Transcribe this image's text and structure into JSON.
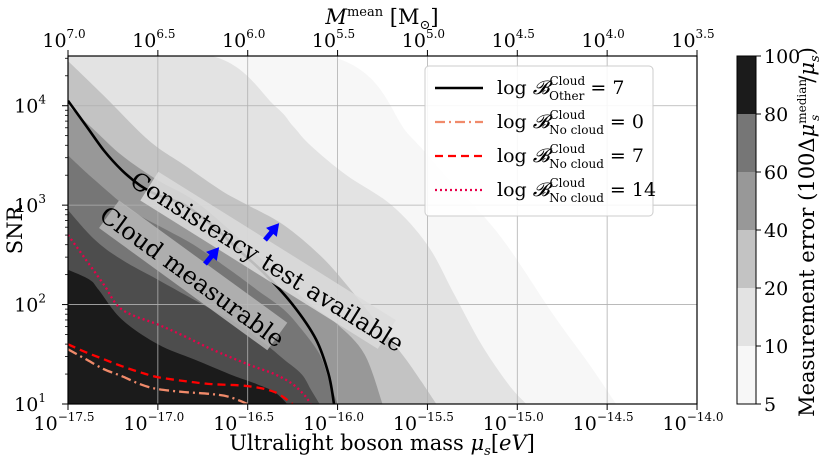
{
  "chart_data": {
    "type": "heatmap",
    "xlabel": "Ultralight boson mass μ_s[eV]",
    "ylabel": "SNR",
    "top_xlabel": "M^mean [M⊙]",
    "colorbar_label": "Measurement error (100Δμ_s^median/μ_s)",
    "x_scale": "log",
    "y_scale": "log",
    "xlim_log10": [
      -17.5,
      -14.0
    ],
    "ylim_log10": [
      1.0,
      4.5
    ],
    "x_ticks": [
      {
        "base": "10",
        "exp": "−17.5",
        "value": -17.5
      },
      {
        "base": "10",
        "exp": "−17.0",
        "value": -17.0
      },
      {
        "base": "10",
        "exp": "−16.5",
        "value": -16.5
      },
      {
        "base": "10",
        "exp": "−16.0",
        "value": -16.0
      },
      {
        "base": "10",
        "exp": "−15.5",
        "value": -15.5
      },
      {
        "base": "10",
        "exp": "−15.0",
        "value": -15.0
      },
      {
        "base": "10",
        "exp": "−14.5",
        "value": -14.5
      },
      {
        "base": "10",
        "exp": "−14.0",
        "value": -14.0
      }
    ],
    "top_ticks": [
      {
        "base": "10",
        "exp": "7.0",
        "value": 7.0
      },
      {
        "base": "10",
        "exp": "6.5",
        "value": 6.5
      },
      {
        "base": "10",
        "exp": "6.0",
        "value": 6.0
      },
      {
        "base": "10",
        "exp": "5.5",
        "value": 5.5
      },
      {
        "base": "10",
        "exp": "5.0",
        "value": 5.0
      },
      {
        "base": "10",
        "exp": "4.5",
        "value": 4.5
      },
      {
        "base": "10",
        "exp": "4.0",
        "value": 4.0
      },
      {
        "base": "10",
        "exp": "3.5",
        "value": 3.5
      }
    ],
    "y_ticks": [
      {
        "base": "10",
        "exp": "1",
        "value": 1
      },
      {
        "base": "10",
        "exp": "2",
        "value": 2
      },
      {
        "base": "10",
        "exp": "3",
        "value": 3
      },
      {
        "base": "10",
        "exp": "4",
        "value": 4
      }
    ],
    "colorbar": {
      "levels": [
        5,
        10,
        20,
        40,
        60,
        80,
        100
      ],
      "level_labels": [
        "5",
        "10",
        "20",
        "40",
        "60",
        "80",
        "100"
      ],
      "colors": [
        "#f7f7f7",
        "#e3e3e3",
        "#c3c3c3",
        "#989898",
        "#767676",
        "#4d4d4d",
        "#1b1b1b"
      ]
    },
    "filled_regions": [
      {
        "level": "5-10",
        "color": "#f7f7f7",
        "boundary": [
          [
            -17.5,
            4.5
          ],
          [
            -16.05,
            4.5
          ],
          [
            -15.6,
            3.7
          ],
          [
            -15.4,
            3.3
          ],
          [
            -15.1,
            2.7
          ],
          [
            -14.8,
            1.9
          ],
          [
            -14.6,
            1.4
          ],
          [
            -14.45,
            1.0
          ],
          [
            -17.5,
            1.0
          ]
        ]
      },
      {
        "level": "10-20",
        "color": "#e3e3e3",
        "boundary": [
          [
            -17.5,
            4.5
          ],
          [
            -16.7,
            4.5
          ],
          [
            -16.35,
            4.0
          ],
          [
            -16.25,
            3.8
          ],
          [
            -16.15,
            3.6
          ],
          [
            -15.95,
            3.3
          ],
          [
            -15.7,
            3.0
          ],
          [
            -15.5,
            2.6
          ],
          [
            -15.35,
            2.1
          ],
          [
            -15.2,
            1.6
          ],
          [
            -15.05,
            1.2
          ],
          [
            -14.95,
            1.0
          ],
          [
            -17.5,
            1.0
          ]
        ]
      },
      {
        "level": "20-40",
        "color": "#c3c3c3",
        "boundary": [
          [
            -17.5,
            4.45
          ],
          [
            -17.3,
            4.1
          ],
          [
            -17.05,
            3.65
          ],
          [
            -16.85,
            3.4
          ],
          [
            -16.65,
            3.15
          ],
          [
            -16.5,
            3.0
          ],
          [
            -16.3,
            2.8
          ],
          [
            -16.1,
            2.5
          ],
          [
            -15.95,
            2.2
          ],
          [
            -15.75,
            1.75
          ],
          [
            -15.6,
            1.4
          ],
          [
            -15.45,
            1.0
          ],
          [
            -17.5,
            1.0
          ]
        ]
      },
      {
        "level": "40-60",
        "color": "#989898",
        "boundary": [
          [
            -17.5,
            4.0
          ],
          [
            -17.35,
            3.75
          ],
          [
            -17.2,
            3.5
          ],
          [
            -17.0,
            3.25
          ],
          [
            -16.8,
            3.05
          ],
          [
            -16.6,
            2.75
          ],
          [
            -16.45,
            2.5
          ],
          [
            -16.3,
            2.25
          ],
          [
            -16.15,
            2.0
          ],
          [
            -16.0,
            1.8
          ],
          [
            -15.85,
            1.5
          ],
          [
            -15.75,
            1.0
          ],
          [
            -17.5,
            1.0
          ]
        ]
      },
      {
        "level": "60-80",
        "color": "#767676",
        "boundary": [
          [
            -17.5,
            3.5
          ],
          [
            -17.35,
            3.25
          ],
          [
            -17.15,
            2.95
          ],
          [
            -16.95,
            2.75
          ],
          [
            -16.8,
            2.6
          ],
          [
            -16.6,
            2.35
          ],
          [
            -16.45,
            2.15
          ],
          [
            -16.3,
            1.95
          ],
          [
            -16.2,
            1.75
          ],
          [
            -16.1,
            1.5
          ],
          [
            -16.05,
            1.25
          ],
          [
            -16.0,
            1.0
          ],
          [
            -17.5,
            1.0
          ]
        ]
      },
      {
        "level": "80-100",
        "color": "#4d4d4d",
        "boundary": [
          [
            -17.5,
            2.95
          ],
          [
            -17.35,
            2.65
          ],
          [
            -17.2,
            2.45
          ],
          [
            -17.0,
            2.25
          ],
          [
            -16.85,
            2.1
          ],
          [
            -16.7,
            1.95
          ],
          [
            -16.55,
            1.8
          ],
          [
            -16.4,
            1.6
          ],
          [
            -16.3,
            1.45
          ],
          [
            -16.2,
            1.3
          ],
          [
            -16.15,
            1.15
          ],
          [
            -16.1,
            1.0
          ],
          [
            -17.5,
            1.0
          ]
        ]
      },
      {
        "level": ">100",
        "color": "#1b1b1b",
        "boundary": [
          [
            -17.5,
            2.35
          ],
          [
            -17.38,
            2.25
          ],
          [
            -17.33,
            2.15
          ],
          [
            -17.2,
            1.85
          ],
          [
            -17.0,
            1.6
          ],
          [
            -16.8,
            1.45
          ],
          [
            -16.6,
            1.3
          ],
          [
            -16.45,
            1.2
          ],
          [
            -16.35,
            1.12
          ],
          [
            -16.28,
            1.0
          ],
          [
            -17.5,
            1.0
          ]
        ]
      }
    ],
    "series": [
      {
        "name": "log 𝓑^Cloud_Other = 7",
        "color": "#000000",
        "style": "solid",
        "x": [
          -17.5,
          -17.4,
          -17.3,
          -17.2,
          -17.1,
          -17.0,
          -16.85,
          -16.7,
          -16.55,
          -16.4,
          -16.25,
          -16.12,
          -16.05,
          -16.02
        ],
        "y": [
          4.05,
          3.8,
          3.55,
          3.35,
          3.2,
          3.1,
          3.0,
          2.8,
          2.55,
          2.3,
          2.0,
          1.65,
          1.3,
          1.0
        ]
      },
      {
        "name": "log 𝓑^Cloud_No cloud = 0",
        "color": "#f08a6a",
        "style": "dashdot",
        "x": [
          -17.5,
          -17.4,
          -17.3,
          -17.2,
          -17.1,
          -17.0,
          -16.85,
          -16.7,
          -16.6,
          -16.5
        ],
        "y": [
          1.55,
          1.45,
          1.35,
          1.28,
          1.2,
          1.15,
          1.12,
          1.1,
          1.07,
          1.0
        ]
      },
      {
        "name": "log 𝓑^Cloud_No cloud = 7",
        "color": "#ff0000",
        "style": "dashed",
        "x": [
          -17.5,
          -17.4,
          -17.3,
          -17.2,
          -17.1,
          -17.0,
          -16.85,
          -16.7,
          -16.5,
          -16.35,
          -16.25
        ],
        "y": [
          1.6,
          1.52,
          1.45,
          1.38,
          1.32,
          1.27,
          1.23,
          1.2,
          1.18,
          1.12,
          1.0
        ]
      },
      {
        "name": "log 𝓑^Cloud_No cloud = 14",
        "color": "#e8004a",
        "style": "dotted",
        "x": [
          -17.5,
          -17.4,
          -17.3,
          -17.2,
          -17.0,
          -16.85,
          -16.7,
          -16.5,
          -16.35,
          -16.25,
          -16.18,
          -16.15
        ],
        "y": [
          2.7,
          2.45,
          2.2,
          1.95,
          1.8,
          1.68,
          1.55,
          1.4,
          1.3,
          1.2,
          1.08,
          1.0
        ]
      }
    ],
    "legend": {
      "placement": "top-right",
      "entries": [
        {
          "pre": "log ",
          "sup": "Cloud",
          "sub": "Other",
          "post": " = 7"
        },
        {
          "pre": "log ",
          "sup": "Cloud",
          "sub": "No cloud",
          "post": " = 0"
        },
        {
          "pre": "log ",
          "sup": "Cloud",
          "sub": "No cloud",
          "post": " = 7"
        },
        {
          "pre": "log ",
          "sup": "Cloud",
          "sub": "No cloud",
          "post": " = 14"
        }
      ]
    },
    "annotations": [
      {
        "text": "Consistency test available",
        "angle": 32
      },
      {
        "text": "Cloud measurable",
        "angle": 36
      }
    ],
    "arrows_color": "#0000ff",
    "grid": true
  }
}
